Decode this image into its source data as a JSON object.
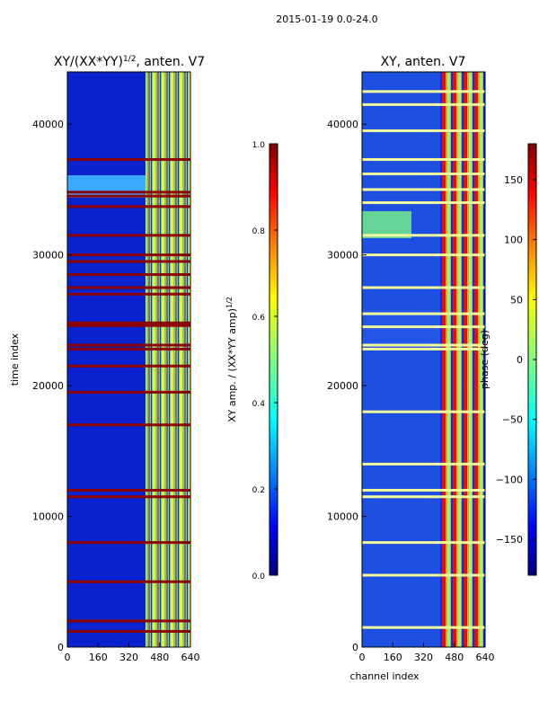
{
  "figure": {
    "suptitle": "2015-01-19 0.0-24.0"
  },
  "chart_data": [
    {
      "type": "heatmap",
      "title_main": "XY/(XX*YY)",
      "title_sup": "1/2",
      "title_tail": ", anten. V7",
      "xlabel": "",
      "ylabel": "time index",
      "xlim": [
        0,
        640
      ],
      "ylim": [
        0,
        44000
      ],
      "xticks": [
        "0",
        "160",
        "320",
        "480",
        "640"
      ],
      "yticks": [
        "0",
        "10000",
        "20000",
        "30000",
        "40000"
      ],
      "colorbar": {
        "label_main": "XY amp. / (XX*YY amp)",
        "label_sup": "1/2",
        "range": [
          0.0,
          1.0
        ],
        "ticks": [
          "0.0",
          "0.2",
          "0.4",
          "0.6",
          "0.8",
          "1.0"
        ]
      },
      "flagged_rows": [
        37300,
        34800,
        34500,
        33700,
        31500,
        30000,
        29500,
        28500,
        27500,
        27000,
        24800,
        24600,
        23100,
        22800,
        21500,
        19500,
        17000,
        12000,
        11500,
        8000,
        5000,
        2000,
        1200
      ],
      "bright_band_channels": [
        400,
        640
      ]
    },
    {
      "type": "heatmap",
      "title_main": "XY, anten. V7",
      "xlabel": "channel index",
      "ylabel": "",
      "xlim": [
        0,
        640
      ],
      "ylim": [
        0,
        44000
      ],
      "xticks": [
        "0",
        "160",
        "320",
        "480",
        "640"
      ],
      "yticks": [
        "0",
        "10000",
        "20000",
        "30000",
        "40000"
      ],
      "colorbar": {
        "label": "phase (deg)",
        "range": [
          -180,
          180
        ],
        "ticks": [
          "150",
          "100",
          "50",
          "0",
          "−50",
          "−100",
          "−150"
        ]
      },
      "flagged_rows": [
        42500,
        41500,
        39500,
        37300,
        36200,
        35000,
        34000,
        31500,
        30000,
        27500,
        25500,
        24500,
        23100,
        22800,
        18000,
        14000,
        12000,
        11500,
        8000,
        5500,
        1500
      ],
      "bright_band_channels": [
        400,
        640
      ]
    }
  ]
}
